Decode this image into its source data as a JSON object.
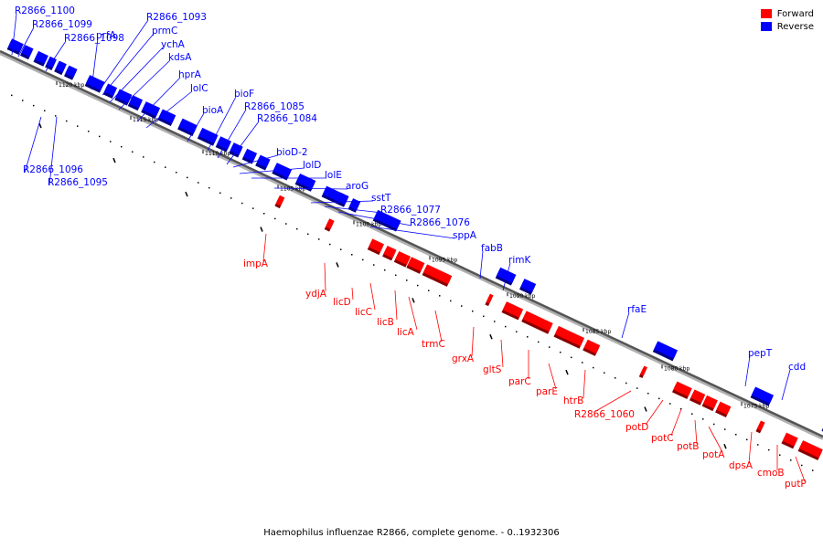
{
  "colors": {
    "forward": "#ff0000",
    "reverse": "#0000ff",
    "axis": "#888888"
  },
  "legend": [
    {
      "label": "Forward",
      "color": "#ff0000"
    },
    {
      "label": "Reverse",
      "color": "#0000ff"
    }
  ],
  "caption": "Haemophilus influenzae R2866, complete genome. - 0..1932306",
  "ticks": [
    "1120 kbp",
    "1115 kbp",
    "1110 kbp",
    "1105 kbp",
    "1100 kbp",
    "1095 kbp",
    "1090 kbp",
    "1085 kbp",
    "1080 kbp",
    "1075 kbp"
  ],
  "reverse_labels": [
    "R2866_1100",
    "R2866_1099",
    "R2866_1098",
    "prfA",
    "R2866_1093",
    "prmC",
    "ychA",
    "kdsA",
    "hprA",
    "lolC",
    "bioA",
    "bioF",
    "R2866_1085",
    "R2866_1084",
    "bioD-2",
    "lolD",
    "lolE",
    "aroG",
    "sstT",
    "R2866_1077",
    "R2866_1076",
    "sppA",
    "fabB",
    "rimK",
    "rfaE",
    "pepT",
    "cdd",
    "R2866_1096",
    "R2866_1095"
  ],
  "forward_labels": [
    "impA",
    "ydjA",
    "licD",
    "licC",
    "licB",
    "licA",
    "trmC",
    "grxA",
    "gltS",
    "parC",
    "parE",
    "htrB",
    "R2866_1060",
    "potD",
    "potC",
    "potB",
    "potA",
    "dpsA",
    "cmoB",
    "putP"
  ]
}
